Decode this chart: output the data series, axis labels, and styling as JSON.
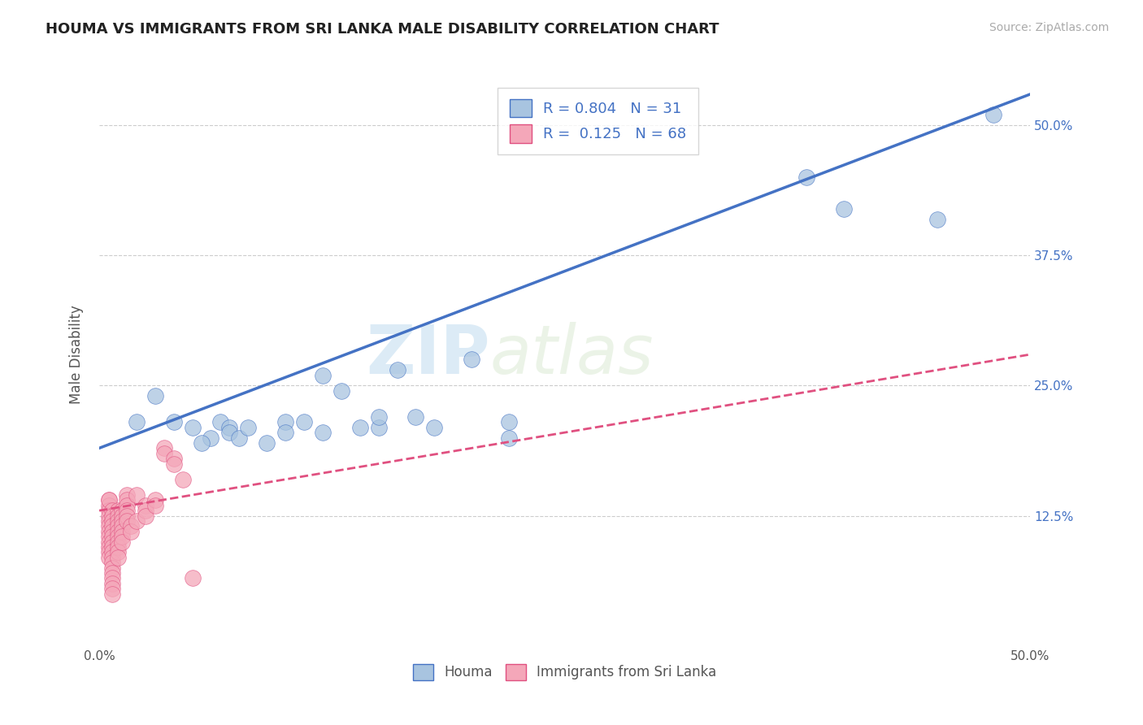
{
  "title": "HOUMA VS IMMIGRANTS FROM SRI LANKA MALE DISABILITY CORRELATION CHART",
  "source": "Source: ZipAtlas.com",
  "ylabel": "Male Disability",
  "xlim": [
    0.0,
    0.5
  ],
  "ylim": [
    0.0,
    0.56
  ],
  "houma_R": "0.804",
  "houma_N": "31",
  "srilanka_R": "0.125",
  "srilanka_N": "68",
  "houma_color": "#a8c4e0",
  "houma_line_color": "#4472c4",
  "srilanka_color": "#f4a7b9",
  "srilanka_line_color": "#e05080",
  "houma_scatter": [
    [
      0.02,
      0.215
    ],
    [
      0.03,
      0.24
    ],
    [
      0.04,
      0.215
    ],
    [
      0.05,
      0.21
    ],
    [
      0.06,
      0.2
    ],
    [
      0.055,
      0.195
    ],
    [
      0.065,
      0.215
    ],
    [
      0.07,
      0.21
    ],
    [
      0.07,
      0.205
    ],
    [
      0.075,
      0.2
    ],
    [
      0.08,
      0.21
    ],
    [
      0.09,
      0.195
    ],
    [
      0.1,
      0.215
    ],
    [
      0.1,
      0.205
    ],
    [
      0.11,
      0.215
    ],
    [
      0.12,
      0.26
    ],
    [
      0.12,
      0.205
    ],
    [
      0.13,
      0.245
    ],
    [
      0.14,
      0.21
    ],
    [
      0.15,
      0.21
    ],
    [
      0.15,
      0.22
    ],
    [
      0.17,
      0.22
    ],
    [
      0.18,
      0.21
    ],
    [
      0.2,
      0.275
    ],
    [
      0.22,
      0.2
    ],
    [
      0.22,
      0.215
    ],
    [
      0.16,
      0.265
    ],
    [
      0.38,
      0.45
    ],
    [
      0.4,
      0.42
    ],
    [
      0.45,
      0.41
    ],
    [
      0.48,
      0.51
    ]
  ],
  "srilanka_scatter": [
    [
      0.005,
      0.14
    ],
    [
      0.005,
      0.135
    ],
    [
      0.005,
      0.13
    ],
    [
      0.005,
      0.125
    ],
    [
      0.005,
      0.12
    ],
    [
      0.005,
      0.115
    ],
    [
      0.005,
      0.11
    ],
    [
      0.005,
      0.105
    ],
    [
      0.005,
      0.1
    ],
    [
      0.005,
      0.095
    ],
    [
      0.005,
      0.09
    ],
    [
      0.005,
      0.085
    ],
    [
      0.005,
      0.14
    ],
    [
      0.007,
      0.13
    ],
    [
      0.007,
      0.125
    ],
    [
      0.007,
      0.12
    ],
    [
      0.007,
      0.115
    ],
    [
      0.007,
      0.11
    ],
    [
      0.007,
      0.105
    ],
    [
      0.007,
      0.1
    ],
    [
      0.007,
      0.095
    ],
    [
      0.007,
      0.09
    ],
    [
      0.007,
      0.085
    ],
    [
      0.007,
      0.08
    ],
    [
      0.007,
      0.075
    ],
    [
      0.007,
      0.07
    ],
    [
      0.007,
      0.065
    ],
    [
      0.007,
      0.06
    ],
    [
      0.007,
      0.055
    ],
    [
      0.007,
      0.05
    ],
    [
      0.01,
      0.13
    ],
    [
      0.01,
      0.125
    ],
    [
      0.01,
      0.12
    ],
    [
      0.01,
      0.115
    ],
    [
      0.01,
      0.11
    ],
    [
      0.01,
      0.105
    ],
    [
      0.01,
      0.1
    ],
    [
      0.01,
      0.095
    ],
    [
      0.01,
      0.09
    ],
    [
      0.01,
      0.085
    ],
    [
      0.012,
      0.13
    ],
    [
      0.012,
      0.125
    ],
    [
      0.012,
      0.12
    ],
    [
      0.012,
      0.115
    ],
    [
      0.012,
      0.11
    ],
    [
      0.012,
      0.105
    ],
    [
      0.012,
      0.1
    ],
    [
      0.015,
      0.145
    ],
    [
      0.015,
      0.14
    ],
    [
      0.015,
      0.135
    ],
    [
      0.015,
      0.13
    ],
    [
      0.015,
      0.125
    ],
    [
      0.015,
      0.12
    ],
    [
      0.017,
      0.115
    ],
    [
      0.017,
      0.11
    ],
    [
      0.02,
      0.145
    ],
    [
      0.02,
      0.12
    ],
    [
      0.025,
      0.135
    ],
    [
      0.025,
      0.13
    ],
    [
      0.025,
      0.125
    ],
    [
      0.03,
      0.14
    ],
    [
      0.03,
      0.135
    ],
    [
      0.035,
      0.19
    ],
    [
      0.035,
      0.185
    ],
    [
      0.04,
      0.18
    ],
    [
      0.04,
      0.175
    ],
    [
      0.045,
      0.16
    ],
    [
      0.05,
      0.065
    ]
  ],
  "houma_trendline": [
    [
      0.0,
      0.19
    ],
    [
      0.5,
      0.53
    ]
  ],
  "srilanka_trendline": [
    [
      0.0,
      0.13
    ],
    [
      0.5,
      0.28
    ]
  ],
  "watermark_zip": "ZIP",
  "watermark_atlas": "atlas",
  "background_color": "#ffffff",
  "grid_color": "#cccccc",
  "title_fontsize": 13,
  "axis_label_fontsize": 12
}
